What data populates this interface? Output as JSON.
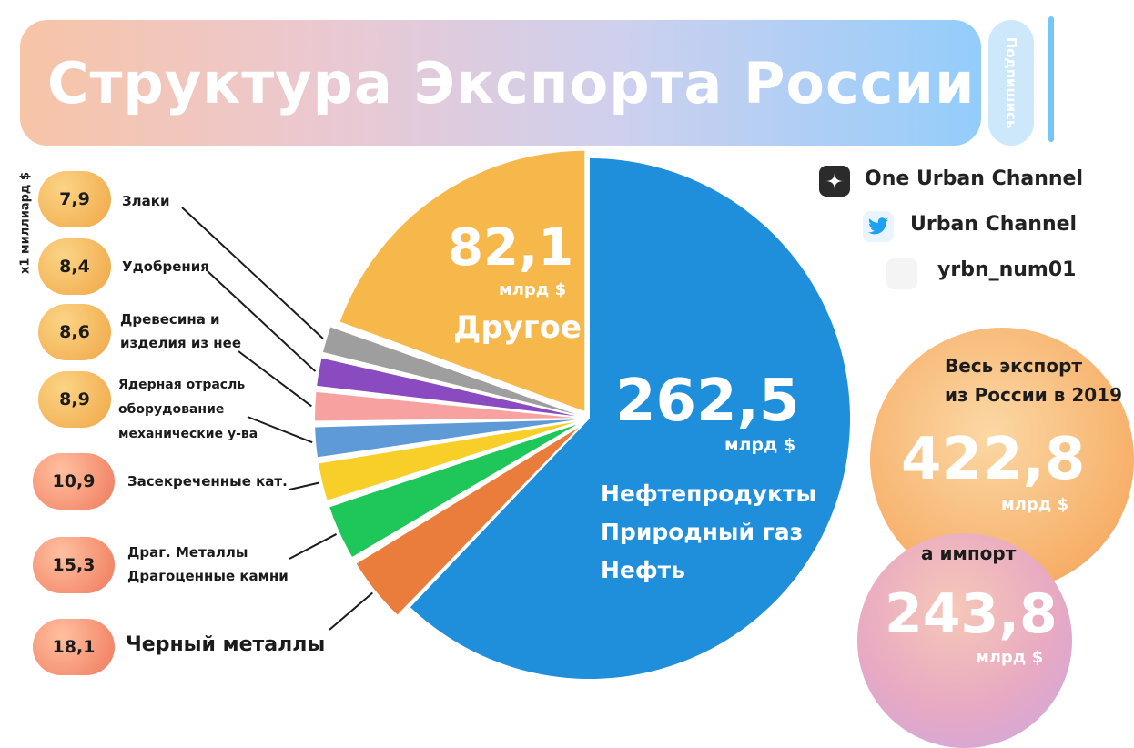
{
  "header": {
    "title": "Структура Экспорта России",
    "subscribe_label": "Подпишись"
  },
  "unit_label": "x1 миллиард $",
  "brands": [
    {
      "name": "One Urban Channel",
      "icon": "zen-icon"
    },
    {
      "name": "Urban Channel",
      "icon": "twitter-icon"
    },
    {
      "name": "yrbn_num01",
      "icon": "instagram-icon"
    }
  ],
  "summary": {
    "export_caption": "Весь экспорт\nиз России в 2019",
    "export_value": "422,8",
    "export_unit": "млрд $",
    "import_caption": "а импорт",
    "import_value": "243,8",
    "import_unit": "млрд $"
  },
  "colors": {
    "oil_gas": "#1f8fdb",
    "other": "#f7b84b",
    "black_metals": "#ea7d3c",
    "precious": "#1fc65a",
    "classified": "#f8cf29",
    "nuclear": "#5e9ad6",
    "wood": "#f8a1a1",
    "fertilizers": "#8a4bc0",
    "grains": "#9e9e9e",
    "badge_yellow": "#f3b14f",
    "badge_orange": "#f28563",
    "export_circle": "#f7b66a",
    "import_circle": "#e9a7bd"
  },
  "chart_data": {
    "type": "pie",
    "title": "Структура Экспорта России",
    "unit": "млрд $",
    "slices": [
      {
        "key": "oil_gas",
        "value": 262.5,
        "display": "262,5",
        "unit": "млрд $",
        "label": [
          "Нефтепродукты",
          "Природный газ",
          "Нефть"
        ]
      },
      {
        "key": "black_metals",
        "value": 18.1,
        "display": "18,1",
        "label": [
          "Черный металлы"
        ]
      },
      {
        "key": "precious",
        "value": 15.3,
        "display": "15,3",
        "label": [
          "Драг. Металлы",
          "Драгоценные камни"
        ]
      },
      {
        "key": "classified",
        "value": 10.9,
        "display": "10,9",
        "label": [
          "Засекреченные кат."
        ]
      },
      {
        "key": "nuclear",
        "value": 8.9,
        "display": "8,9",
        "label": [
          "Ядерная отрасль",
          "оборудование",
          "механические у-ва"
        ]
      },
      {
        "key": "wood",
        "value": 8.6,
        "display": "8,6",
        "label": [
          "Древесина и",
          "изделия из нее"
        ]
      },
      {
        "key": "fertilizers",
        "value": 8.4,
        "display": "8,4",
        "label": [
          "Удобрения"
        ]
      },
      {
        "key": "grains",
        "value": 7.9,
        "display": "7,9",
        "label": [
          "Злаки"
        ]
      },
      {
        "key": "other",
        "value": 82.1,
        "display": "82,1",
        "unit": "млрд $",
        "label": [
          "Другое"
        ]
      }
    ]
  }
}
